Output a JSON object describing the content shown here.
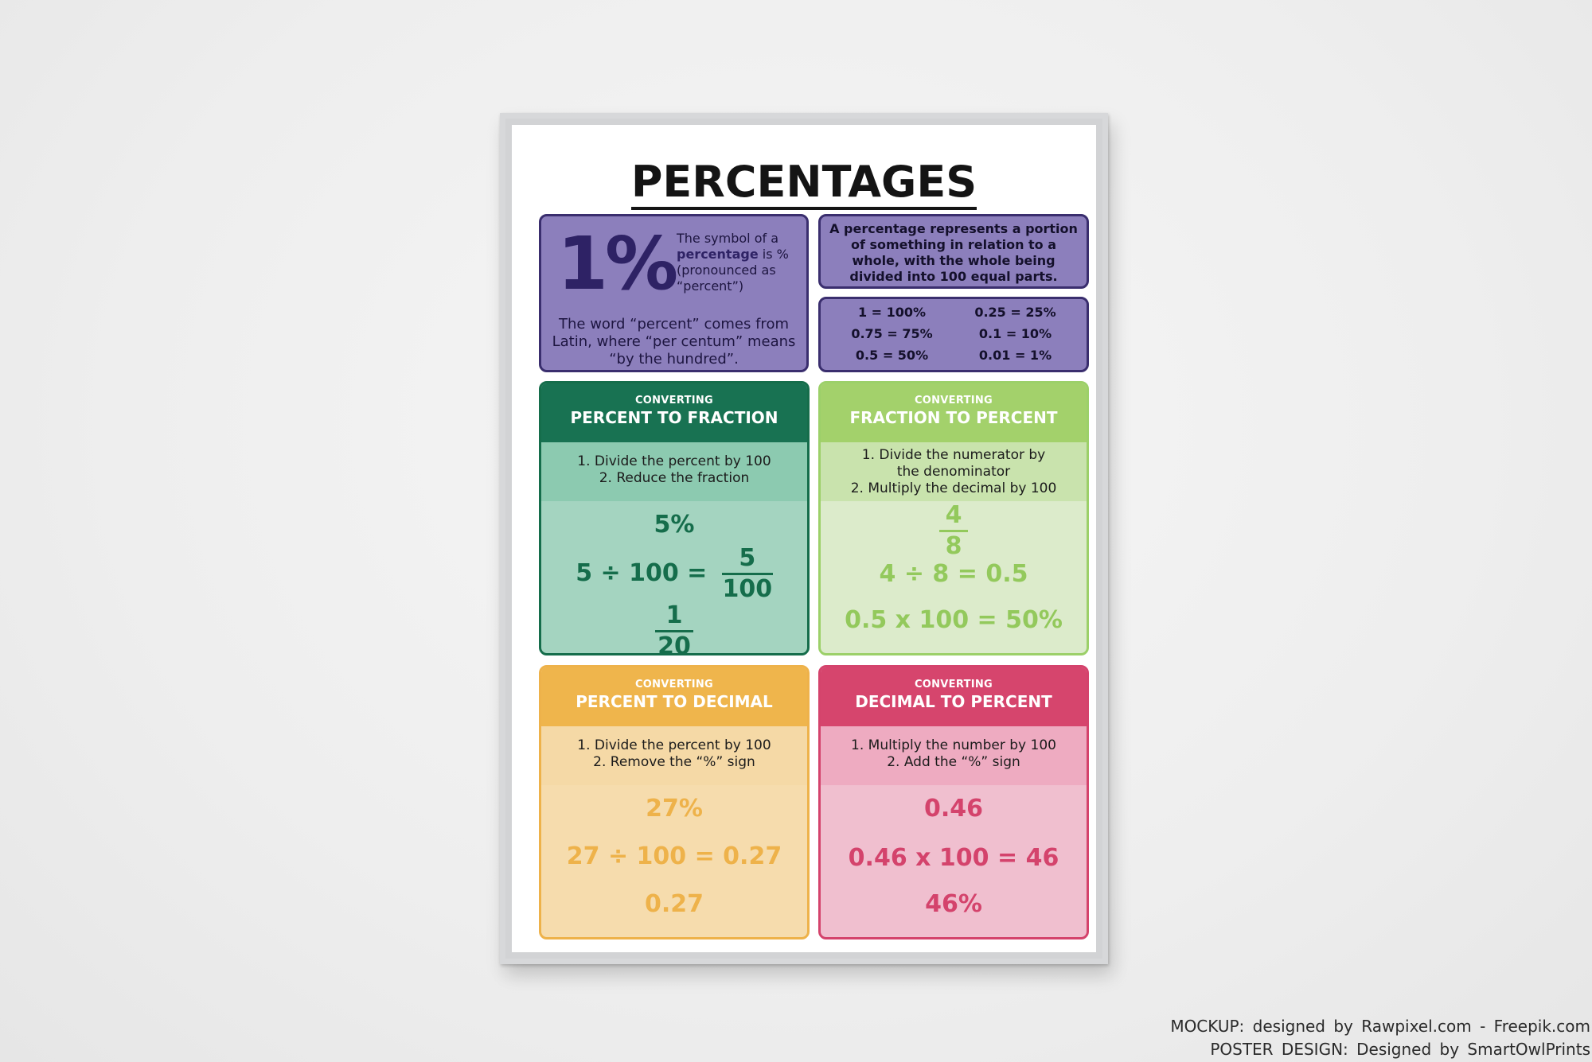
{
  "poster": {
    "title": "PERCENTAGES",
    "intro": {
      "symbol": "1%",
      "symbol_text_1": "The symbol of a ",
      "symbol_text_hl": "percentage",
      "symbol_text_2": " is % (pronounced as “percent”)",
      "word_text": "The word “percent” comes from Latin, where “per centum” means “by the hundred”."
    },
    "definition": "A percentage represents a portion of something in relation to a whole, with the whole being divided into 100 equal parts.",
    "equivalents": [
      "1 = 100%",
      "0.25 = 25%",
      "0.75 = 75%",
      "0.1 = 10%",
      "0.5 = 50%",
      "0.01 = 1%"
    ],
    "cards": {
      "percent_to_fraction": {
        "small": "CONVERTING",
        "big": "PERCENT TO FRACTION",
        "step1": "1. Divide the percent by 100",
        "step2": "2. Reduce the fraction",
        "ex1": "5%",
        "ex2_left": "5 ÷ 100 =",
        "ex2_num": "5",
        "ex2_den": "100",
        "ex3_num": "1",
        "ex3_den": "20"
      },
      "fraction_to_percent": {
        "small": "CONVERTING",
        "big": "FRACTION TO PERCENT",
        "step1": "1. Divide the numerator by",
        "step1b": "the denominator",
        "step2": "2. Multiply the decimal by 100",
        "ex1_num": "4",
        "ex1_den": "8",
        "ex2": "4 ÷ 8 = 0.5",
        "ex3": "0.5 x 100 = 50%"
      },
      "percent_to_decimal": {
        "small": "CONVERTING",
        "big": "PERCENT TO DECIMAL",
        "step1": "1. Divide the percent by 100",
        "step2": "2. Remove the “%” sign",
        "ex1": "27%",
        "ex2": "27 ÷ 100 = 0.27",
        "ex3": "0.27"
      },
      "decimal_to_percent": {
        "small": "CONVERTING",
        "big": "DECIMAL TO PERCENT",
        "step1": "1. Multiply the number by 100",
        "step2": "2. Add the “%” sign",
        "ex1": "0.46",
        "ex2": "0.46 x 100 = 46",
        "ex3": "46%"
      }
    }
  },
  "credits": {
    "line1": "MOCKUP: designed by Rawpixel.com - Freepik.com",
    "line2": "POSTER DESIGN: Designed by SmartOwlPrints"
  }
}
